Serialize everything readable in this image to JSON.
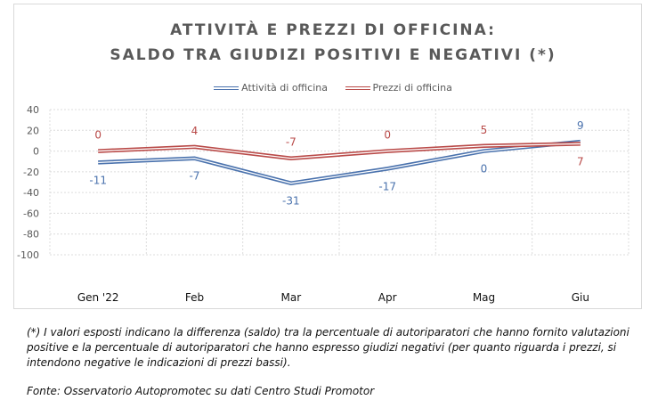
{
  "chart_data": {
    "type": "line",
    "title": [
      "ATTIVITÀ E PREZZI DI OFFICINA:",
      "SALDO TRA GIUDIZI POSITIVI E NEGATIVI (*)"
    ],
    "categories": [
      "Gen '22",
      "Feb",
      "Mar",
      "Apr",
      "Mag",
      "Giu"
    ],
    "series": [
      {
        "name": "Attività di officina",
        "values": [
          -11,
          -7,
          -31,
          -17,
          0,
          9
        ],
        "color": "#4a72ad"
      },
      {
        "name": "Prezzi di officina",
        "values": [
          0,
          4,
          -7,
          0,
          5,
          7
        ],
        "color": "#b94a48"
      }
    ],
    "ylim": [
      -100,
      40
    ],
    "yticks": [
      40,
      20,
      0,
      -20,
      -40,
      -60,
      -80,
      -100
    ],
    "grid": true,
    "legend": "top"
  },
  "notes": {
    "footnote": "(*) I valori esposti indicano la differenza (saldo) tra la percentuale di autoriparatori che hanno fornito valutazioni positive e la percentuale di autoriparatori che hanno espresso giudizi negativi (per quanto riguarda i prezzi, si intendono negative le indicazioni di prezzi bassi).",
    "source": "Fonte: Osservatorio Autopromotec su dati Centro Studi Promotor"
  }
}
